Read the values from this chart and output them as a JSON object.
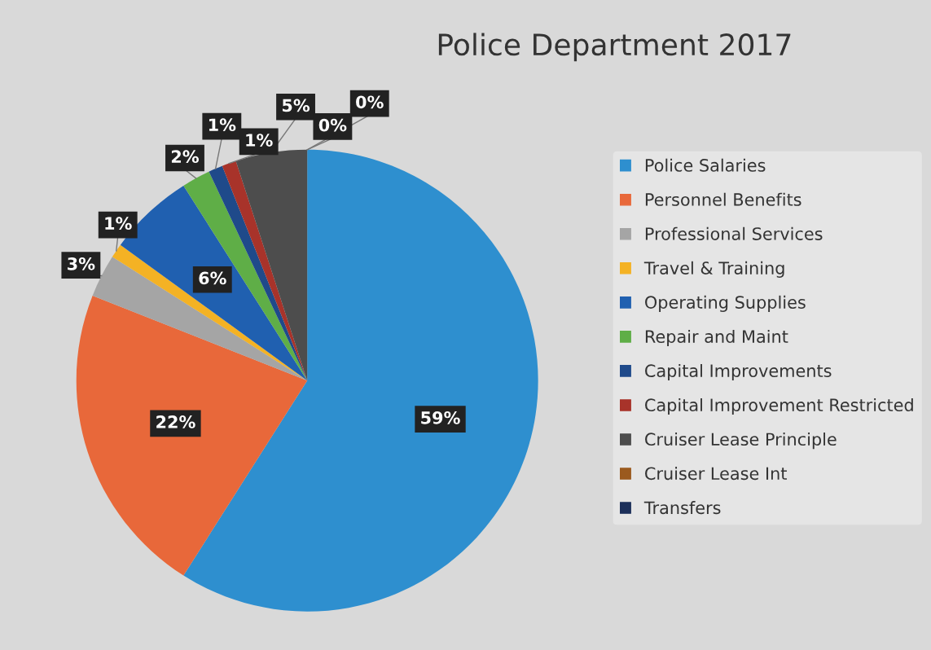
{
  "chart_data": {
    "type": "pie",
    "title": "Police Department 2017",
    "categories": [
      "Police Salaries",
      "Personnel Benefits",
      "Professional Services",
      "Travel & Training",
      "Operating Supplies",
      "Repair and Maint",
      "Capital Improvements",
      "Capital Improvement Restricted",
      "Cruiser Lease Principle",
      "Cruiser Lease Int",
      "Transfers"
    ],
    "values": [
      59,
      22,
      3,
      1,
      6,
      2,
      1,
      1,
      5,
      0,
      0
    ],
    "value_labels": [
      "59%",
      "22%",
      "3%",
      "1%",
      "6%",
      "2%",
      "1%",
      "1%",
      "5%",
      "0%",
      "0%"
    ],
    "colors": [
      "#2e8fcf",
      "#e8683a",
      "#a5a5a5",
      "#f4b224",
      "#2060b0",
      "#5fae47",
      "#1f4a8a",
      "#a8332a",
      "#4d4d4d",
      "#9b5a1e",
      "#1c2f5a"
    ],
    "legend": "right"
  }
}
